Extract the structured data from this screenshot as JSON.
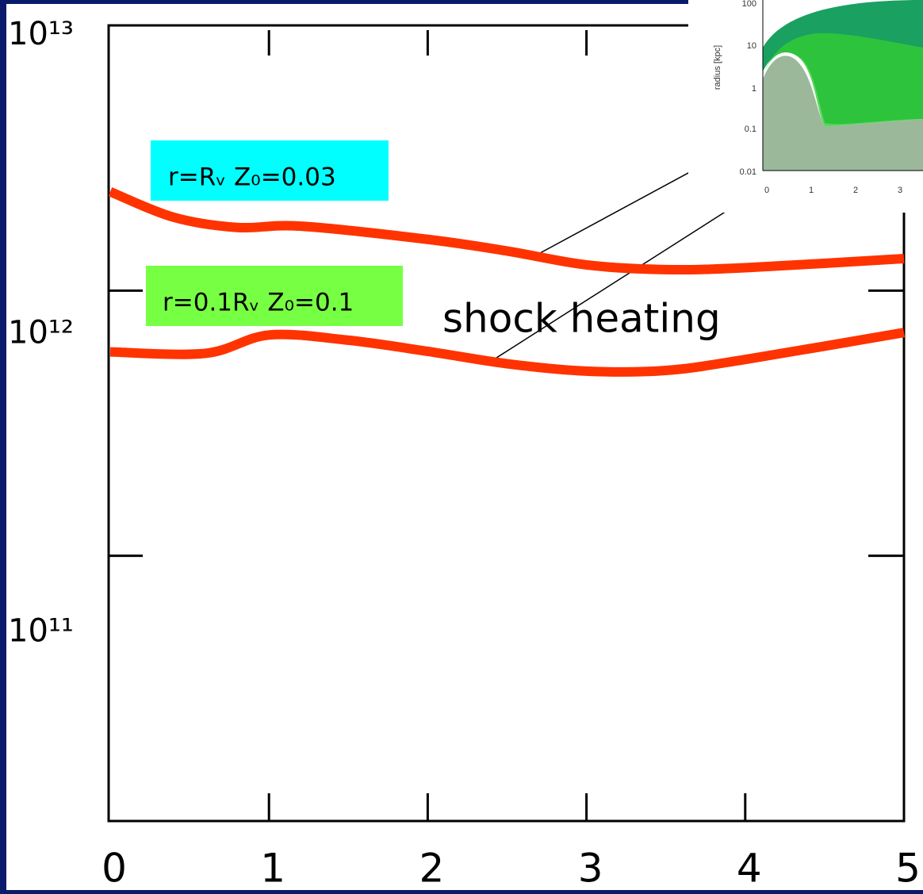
{
  "chart_data": {
    "type": "line",
    "xlim": [
      0,
      5
    ],
    "xticks": [
      0,
      1,
      2,
      3,
      4,
      5
    ],
    "ylim": [
      10000000000,
      10000000000000
    ],
    "log_y": true,
    "yticks": [
      {
        "value": 10000000000000,
        "label": "10¹³"
      },
      {
        "value": 1000000000000,
        "label": "10¹²"
      },
      {
        "value": 100000000000,
        "label": "10¹¹"
      }
    ],
    "series": [
      {
        "name": "r=Rᵥ  Z₀=0.03",
        "color": "#ff3300",
        "legend_color": "#00ffff",
        "x": [
          0,
          0.4,
          0.8,
          1.2,
          2,
          2.5,
          3,
          3.5,
          4,
          5
        ],
        "values": [
          2360000000000,
          1890000000000,
          1730000000000,
          1750000000000,
          1560000000000,
          1410000000000,
          1250000000000,
          1200000000000,
          1220000000000,
          1320000000000
        ]
      },
      {
        "name": "r=0.1Rᵥ Z₀=0.1",
        "color": "#ff3300",
        "legend_color": "#77ff44",
        "x": [
          0,
          0.6,
          1,
          1.5,
          2,
          2.5,
          3,
          3.5,
          4,
          5
        ],
        "values": [
          587000000000,
          580000000000,
          680000000000,
          650000000000,
          590000000000,
          530000000000,
          497000000000,
          500000000000,
          550000000000,
          695000000000
        ]
      }
    ],
    "annotation": "shock heating",
    "inset": {
      "ylabel": "radius [kpc]",
      "yticks": [
        "100",
        "10",
        "1",
        "0.1",
        "0.01"
      ],
      "xticks": [
        "0",
        "1",
        "2",
        "3"
      ]
    }
  }
}
